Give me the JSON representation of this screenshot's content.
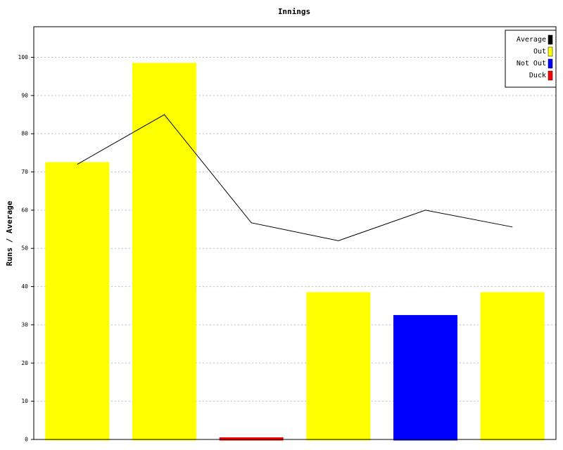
{
  "chart_data": {
    "type": "bar",
    "title": "Innings",
    "y_label": "Runs / Average",
    "series": [
      {
        "name": "Average",
        "type": "line",
        "color": "#000000",
        "values": [
          72,
          85,
          56.7,
          52,
          60,
          55.6
        ]
      },
      {
        "name": "Out",
        "color": "#ffff00",
        "values": [
          72,
          98,
          null,
          38,
          null,
          38
        ]
      },
      {
        "name": "Not Out",
        "color": "#0000ff",
        "values": [
          null,
          null,
          null,
          null,
          32,
          null
        ]
      },
      {
        "name": "Duck",
        "color": "#ff0000",
        "values": [
          null,
          null,
          0,
          null,
          null,
          null
        ]
      }
    ],
    "ylim": [
      0,
      108
    ],
    "yticks": [
      0,
      10,
      20,
      30,
      40,
      50,
      60,
      70,
      80,
      90,
      100
    ],
    "grid": true,
    "legend": "top-right"
  }
}
